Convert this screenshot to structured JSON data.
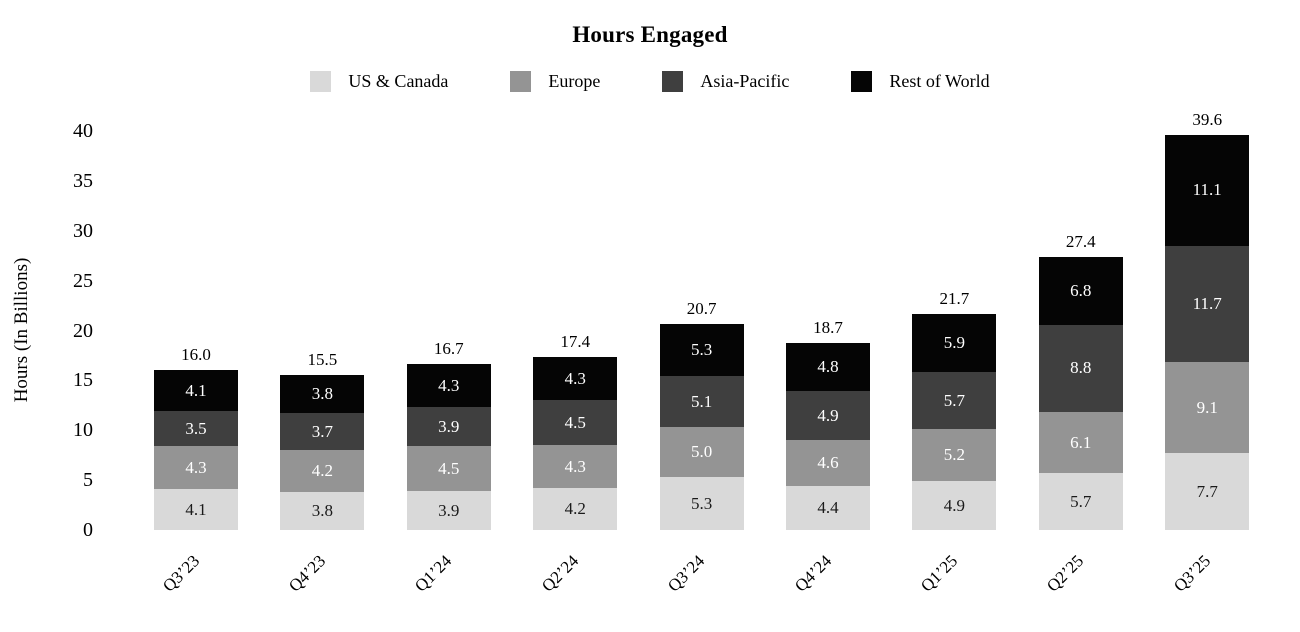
{
  "title": "Hours Engaged",
  "y_axis": {
    "label": "Hours (In Billions)",
    "ticks": [
      0,
      5,
      10,
      15,
      20,
      25,
      30,
      35,
      40
    ]
  },
  "chart_data": {
    "type": "bar",
    "stacked": true,
    "title": "Hours Engaged",
    "xlabel": "",
    "ylabel": "Hours (In Billions)",
    "ylim": [
      0,
      40
    ],
    "grid": false,
    "legend_position": "top",
    "categories": [
      "Q3’23",
      "Q4’23",
      "Q1’24",
      "Q2’24",
      "Q3’24",
      "Q4’24",
      "Q1’25",
      "Q2’25",
      "Q3’25"
    ],
    "series": [
      {
        "name": "US & Canada",
        "color": "#D9D9D9",
        "label_color": "#1a1a1a",
        "values": [
          4.1,
          3.8,
          3.9,
          4.2,
          5.3,
          4.4,
          4.9,
          5.7,
          7.7
        ]
      },
      {
        "name": "Europe",
        "color": "#949494",
        "label_color": "#ffffff",
        "values": [
          4.3,
          4.2,
          4.5,
          4.3,
          5.0,
          4.6,
          5.2,
          6.1,
          9.1
        ]
      },
      {
        "name": "Asia-Pacific",
        "color": "#3F3F3F",
        "label_color": "#ffffff",
        "values": [
          3.5,
          3.7,
          3.9,
          4.5,
          5.1,
          4.9,
          5.7,
          8.8,
          11.7
        ]
      },
      {
        "name": "Rest of World",
        "color": "#050505",
        "label_color": "#ffffff",
        "values": [
          4.1,
          3.8,
          4.3,
          4.3,
          5.3,
          4.8,
          5.9,
          6.8,
          11.1
        ]
      }
    ],
    "totals": [
      "16.0",
      "15.5",
      "16.7",
      "17.4",
      "20.7",
      "18.7",
      "21.7",
      "27.4",
      "39.6"
    ]
  }
}
